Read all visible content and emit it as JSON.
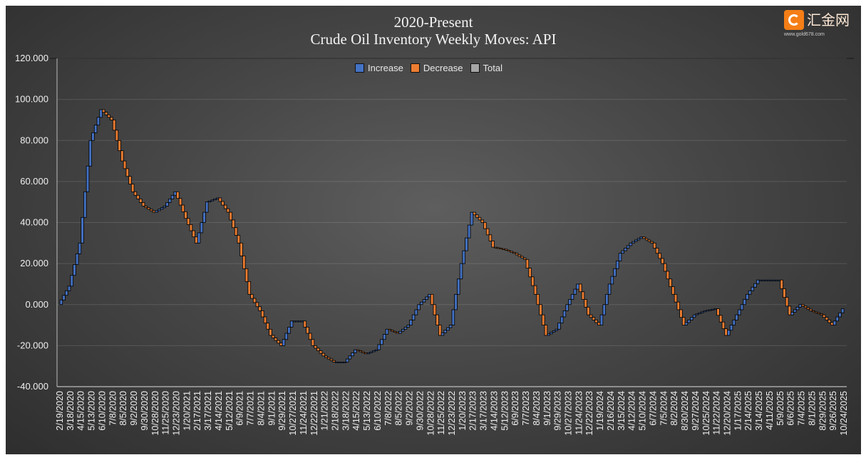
{
  "chart_data": {
    "type": "waterfall",
    "title": "2020-Present",
    "subtitle": "Crude Oil Inventory Weekly Moves:  API",
    "legend": [
      {
        "name": "Increase",
        "color": "#4472c4"
      },
      {
        "name": "Decrease",
        "color": "#ed7d31"
      },
      {
        "name": "Total",
        "color": "#a5a5a5"
      }
    ],
    "legend_position": "top-center",
    "ylim": [
      -40,
      120
    ],
    "yticks": [
      "-40.000",
      "-20.000",
      "0.000",
      "20.000",
      "40.000",
      "60.000",
      "80.000",
      "100.000",
      "120.000"
    ],
    "ytick_values": [
      -40,
      -20,
      0,
      20,
      40,
      60,
      80,
      100,
      120
    ],
    "grid": true,
    "weeks_per_label": 4,
    "categories": [
      "2/19/2020",
      "3/18/2020",
      "4/15/2020",
      "5/13/2020",
      "6/10/2020",
      "7/8/2020",
      "8/5/2020",
      "9/2/2020",
      "9/30/2020",
      "10/28/2020",
      "11/25/2020",
      "12/23/2020",
      "1/20/2021",
      "2/17/2021",
      "3/17/2021",
      "4/14/2021",
      "5/12/2021",
      "6/9/2021",
      "7/7/2021",
      "8/4/2021",
      "9/1/2021",
      "9/29/2021",
      "10/27/2021",
      "11/24/2021",
      "12/22/2021",
      "1/21/2022",
      "2/18/2022",
      "3/18/2022",
      "4/15/2022",
      "5/13/2022",
      "6/10/2022",
      "7/8/2022",
      "8/5/2022",
      "9/2/2022",
      "9/30/2022",
      "10/28/2022",
      "11/25/2022",
      "12/23/2022",
      "1/20/2023",
      "2/17/2023",
      "3/17/2023",
      "4/14/2023",
      "5/12/2023",
      "6/9/2023",
      "7/7/2023",
      "8/4/2023",
      "9/1/2023",
      "9/29/2023",
      "10/27/2023",
      "11/24/2023",
      "12/22/2023",
      "1/19/2024",
      "2/16/2024",
      "3/15/2024",
      "4/12/2024",
      "5/10/2024",
      "6/7/2024",
      "7/5/2024",
      "8/2/2024",
      "8/30/2024",
      "9/27/2024",
      "10/25/2024",
      "11/22/2024",
      "12/20/2024",
      "1/17/2025",
      "2/14/2025",
      "3/14/2025",
      "4/11/2025",
      "5/9/2025",
      "6/6/2025",
      "7/4/2025",
      "8/1/2025",
      "8/29/2025",
      "9/26/2025",
      "10/24/2025"
    ],
    "cumulative_level": [
      0,
      9,
      30,
      80,
      95,
      90,
      70,
      55,
      48,
      45,
      48,
      55,
      42,
      30,
      50,
      52,
      45,
      30,
      5,
      -3,
      -15,
      -20,
      -8,
      -8,
      -20,
      -25,
      -28,
      -28,
      -22,
      -24,
      -22,
      -12,
      -14,
      -10,
      0,
      5,
      -15,
      -10,
      20,
      45,
      40,
      28,
      27,
      25,
      22,
      5,
      -15,
      -12,
      0,
      10,
      -5,
      -10,
      10,
      25,
      30,
      33,
      30,
      20,
      5,
      -10,
      -5,
      -3,
      -2,
      -15,
      -5,
      5,
      12,
      12,
      12,
      -5,
      0,
      -3,
      -5,
      -10,
      -2
    ]
  },
  "watermark": {
    "brand": "汇金网",
    "url": "www.gold678.com"
  }
}
